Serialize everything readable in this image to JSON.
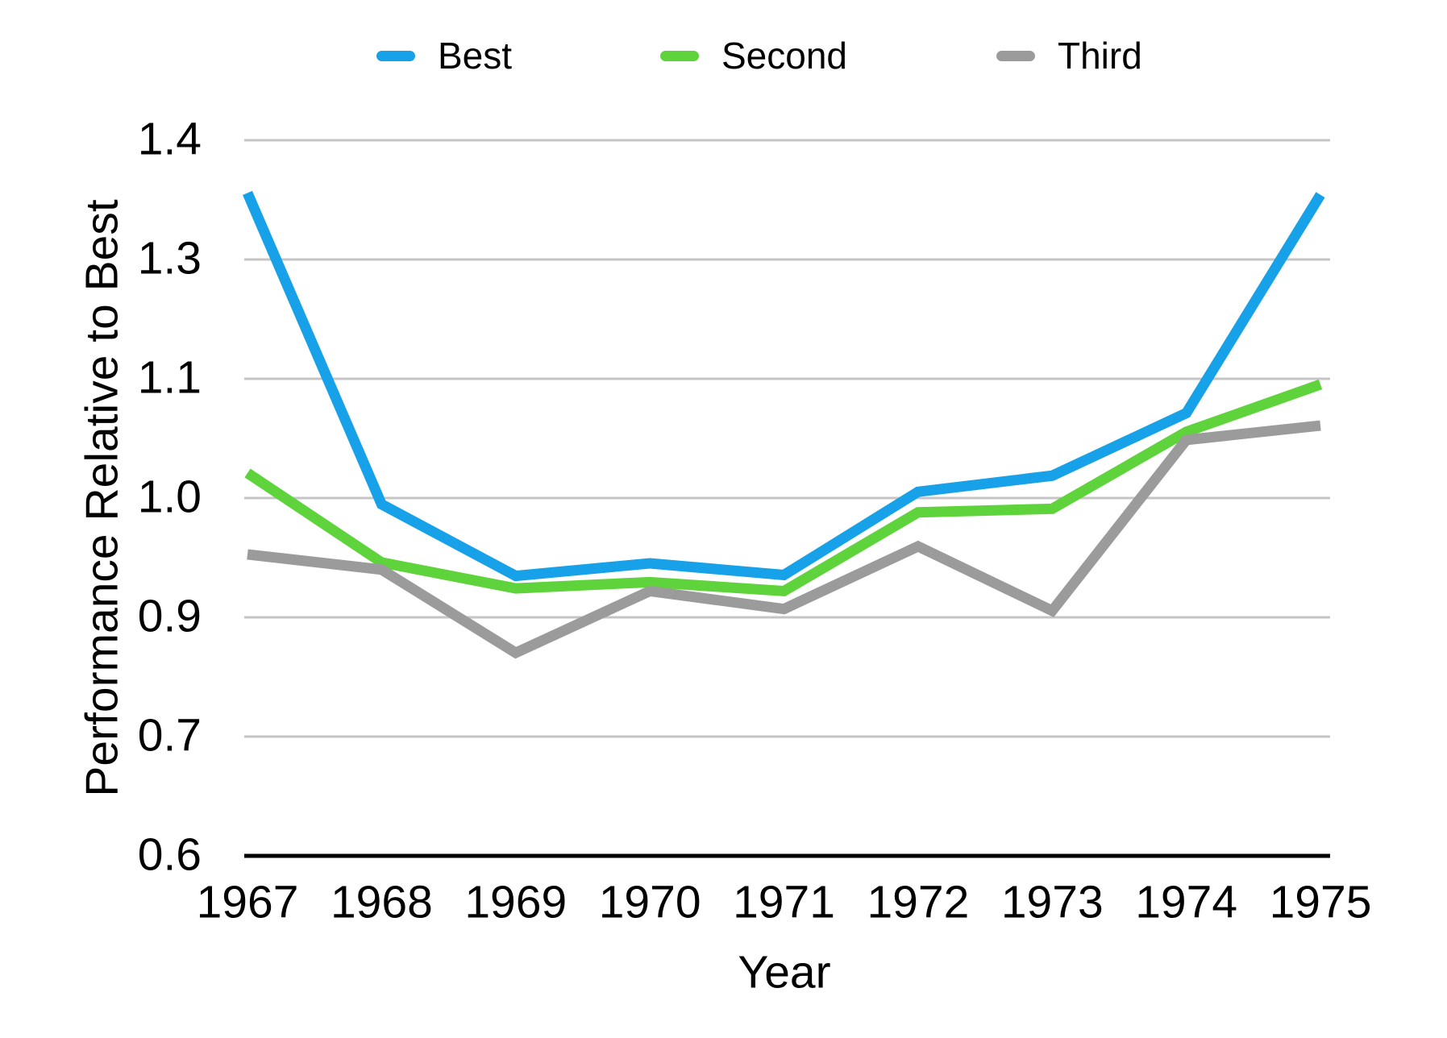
{
  "legend": {
    "items": [
      {
        "label": "Best",
        "color": "#17A1E8"
      },
      {
        "label": "Second",
        "color": "#5FD33B"
      },
      {
        "label": "Third",
        "color": "#9B9B9B"
      }
    ]
  },
  "y_axis": {
    "title": "Performance Relative to Best",
    "tick_labels_top_to_bottom": [
      "1.4",
      "1.3",
      "1.1",
      "1.0",
      "0.9",
      "0.7",
      "0.6"
    ]
  },
  "x_axis": {
    "title": "Year",
    "tick_labels": [
      "1967",
      "1968",
      "1969",
      "1970",
      "1971",
      "1972",
      "1973",
      "1974",
      "1975"
    ]
  },
  "chart_data": {
    "type": "line",
    "title": "",
    "xlabel": "Year",
    "ylabel": "Performance Relative to Best",
    "x": [
      1967,
      1968,
      1969,
      1970,
      1971,
      1972,
      1973,
      1974,
      1975
    ],
    "series": [
      {
        "name": "Best",
        "color": "#17A1E8",
        "values": [
          1.341,
          0.993,
          0.913,
          0.927,
          0.914,
          1.007,
          1.025,
          1.095,
          1.339
        ]
      },
      {
        "name": "Second",
        "color": "#5FD33B",
        "values": [
          1.028,
          0.928,
          0.899,
          0.906,
          0.896,
          0.984,
          0.988,
          1.074,
          1.127
        ]
      },
      {
        "name": "Third",
        "color": "#9B9B9B",
        "values": [
          0.937,
          0.92,
          0.827,
          0.896,
          0.876,
          0.946,
          0.874,
          1.065,
          1.081
        ]
      }
    ],
    "ylim": [
      0.6,
      1.4
    ],
    "y_tick_interval": 0.13333,
    "y_tick_labels_rounded": [
      "0.6",
      "0.7",
      "0.9",
      "1.0",
      "1.1",
      "1.3",
      "1.4"
    ],
    "grid": "horizontal",
    "gridline_color": "#C5C5C5",
    "axis_line_color": "#000000",
    "legend_position": "top",
    "line_width": 13
  }
}
